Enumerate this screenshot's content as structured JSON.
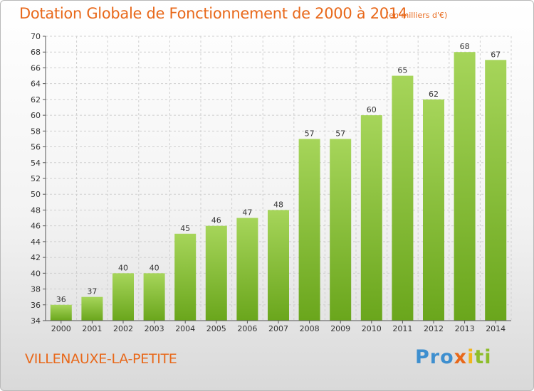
{
  "header": {
    "title": "Dotation Globale de Fonctionnement de 2000 à 2014",
    "unit": "(en milliers d'€)"
  },
  "commune": "VILLENAUXE-LA-PETITE",
  "logo": {
    "parts": [
      "Pro",
      "x",
      "i",
      "ti"
    ]
  },
  "colors": {
    "accent": "#e8681a",
    "bar_light": "#a6d55a",
    "bar_dark": "#6aa61c",
    "grid": "#cfcfcf"
  },
  "chart_data": {
    "type": "bar",
    "title": "Dotation Globale de Fonctionnement de 2000 à 2014",
    "subtitle": "(en milliers d'€)",
    "xlabel": "",
    "ylabel": "",
    "categories": [
      "2000",
      "2001",
      "2002",
      "2003",
      "2004",
      "2005",
      "2006",
      "2007",
      "2008",
      "2009",
      "2010",
      "2011",
      "2012",
      "2013",
      "2014"
    ],
    "values": [
      36,
      37,
      40,
      40,
      45,
      46,
      47,
      48,
      57,
      57,
      60,
      65,
      62,
      68,
      67
    ],
    "ylim": [
      34,
      70
    ],
    "yticks": [
      34,
      36,
      38,
      40,
      42,
      44,
      46,
      48,
      50,
      52,
      54,
      56,
      58,
      60,
      62,
      64,
      66,
      68,
      70
    ],
    "grid": true,
    "data_labels": true
  }
}
